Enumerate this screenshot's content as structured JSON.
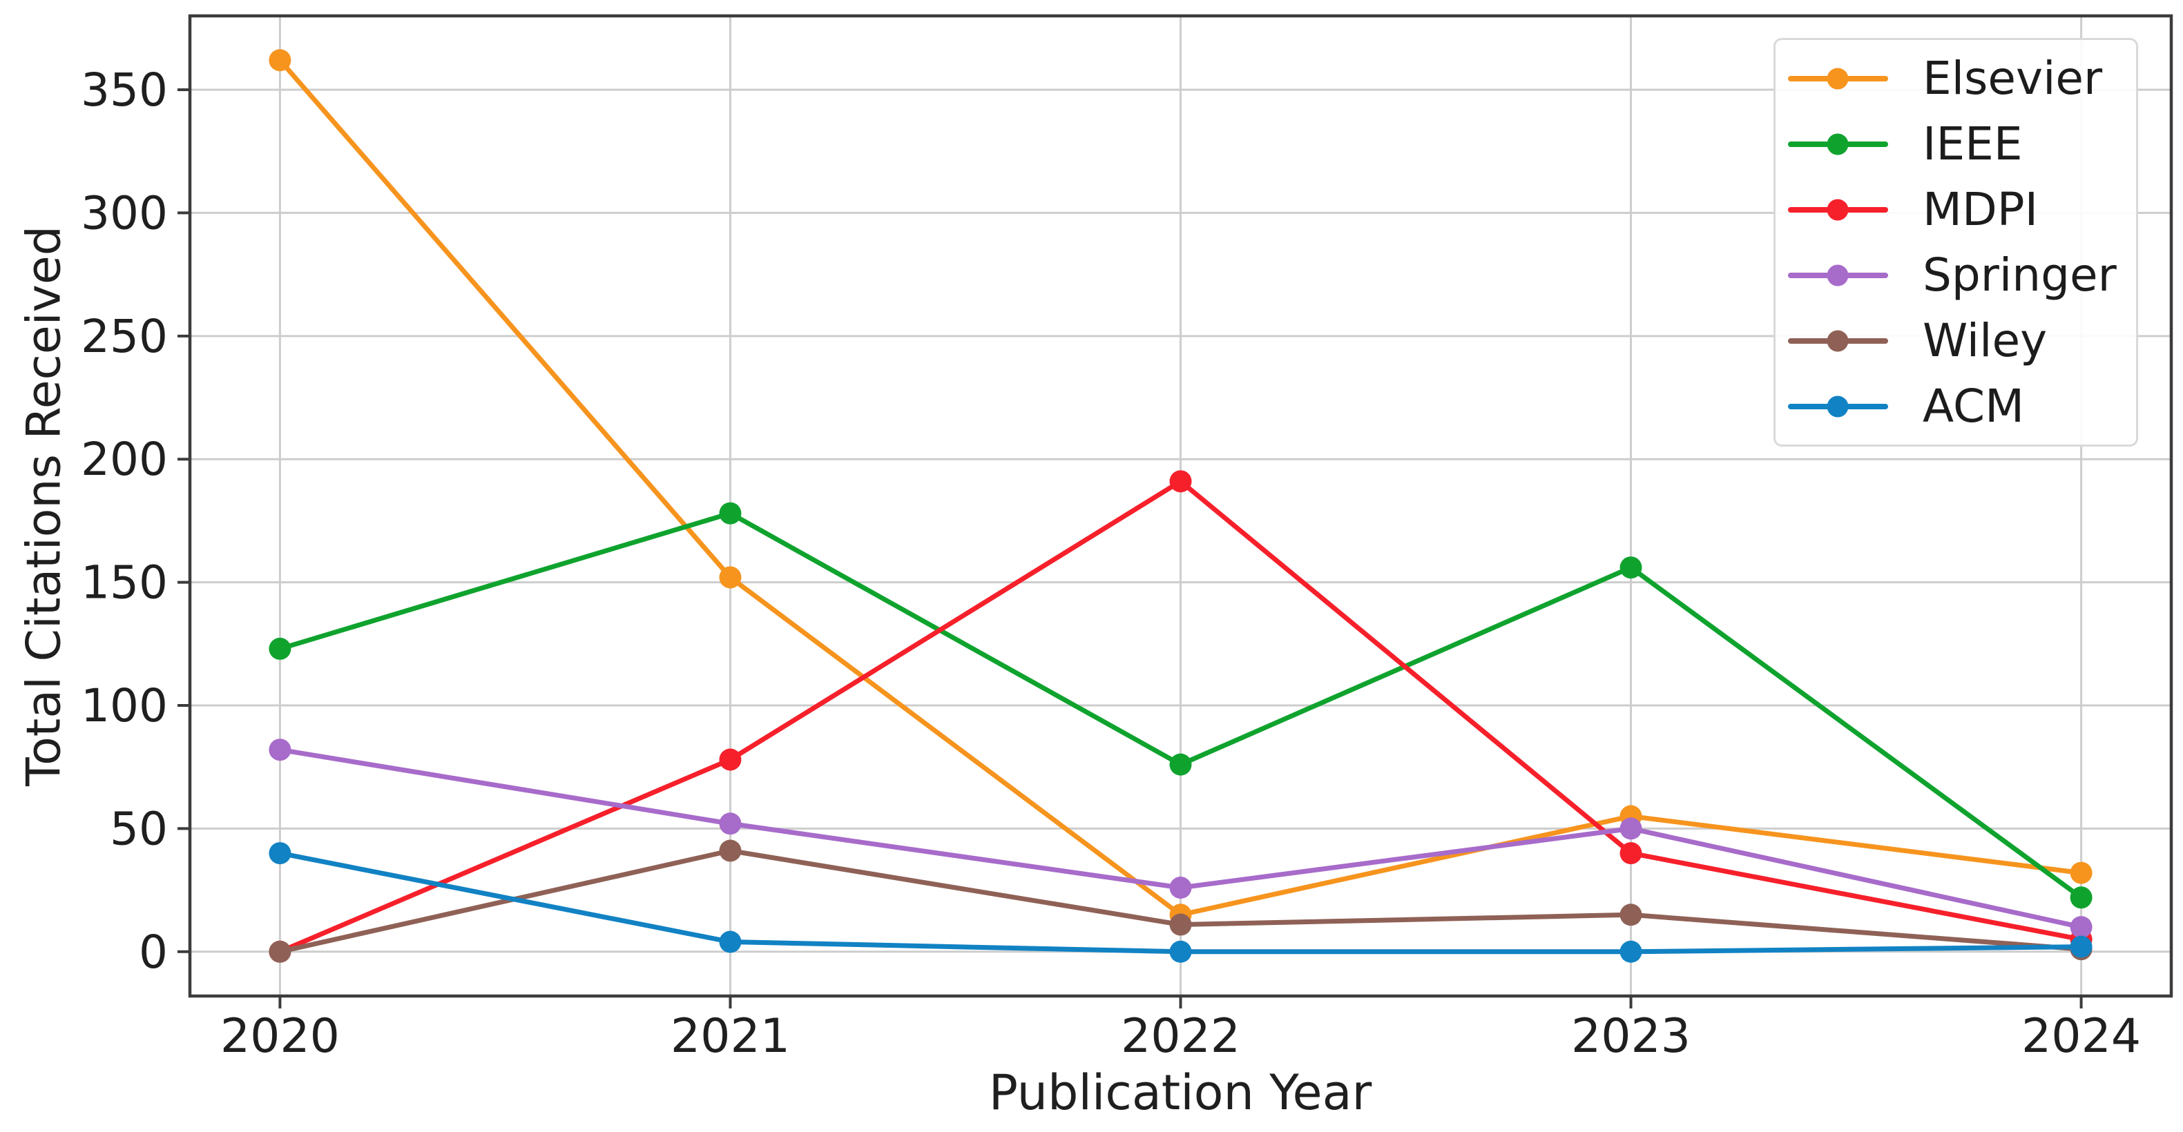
{
  "chart_data": {
    "type": "line",
    "x": [
      2020,
      2021,
      2022,
      2023,
      2024
    ],
    "xlabel": "Publication Year",
    "ylabel": "Total Citations Received",
    "xlim": [
      2019.8,
      2024.2
    ],
    "ylim": [
      -18,
      380
    ],
    "xticks": [
      2020,
      2021,
      2022,
      2023,
      2024
    ],
    "yticks": [
      0,
      50,
      100,
      150,
      200,
      250,
      300,
      350
    ],
    "grid": true,
    "legend_position": "upper-right",
    "series": [
      {
        "name": "Elsevier",
        "color": "#f6941e",
        "values": [
          362,
          152,
          15,
          55,
          32
        ]
      },
      {
        "name": "IEEE",
        "color": "#0fa32e",
        "values": [
          123,
          178,
          76,
          156,
          22
        ]
      },
      {
        "name": "MDPI",
        "color": "#f6202b",
        "values": [
          0,
          78,
          191,
          40,
          5
        ]
      },
      {
        "name": "Springer",
        "color": "#a76bca",
        "values": [
          82,
          52,
          26,
          50,
          10
        ]
      },
      {
        "name": "Wiley",
        "color": "#8f6156",
        "values": [
          0,
          41,
          11,
          15,
          1
        ]
      },
      {
        "name": "ACM",
        "color": "#1182c3",
        "values": [
          40,
          4,
          0,
          0,
          2
        ]
      }
    ],
    "style": {
      "grid_color": "#cdcdcd",
      "spine_color": "#3c3c3c",
      "tick_color": "#3c3c3c",
      "text_color": "#1f1f1f",
      "background": "#ffffff"
    }
  }
}
